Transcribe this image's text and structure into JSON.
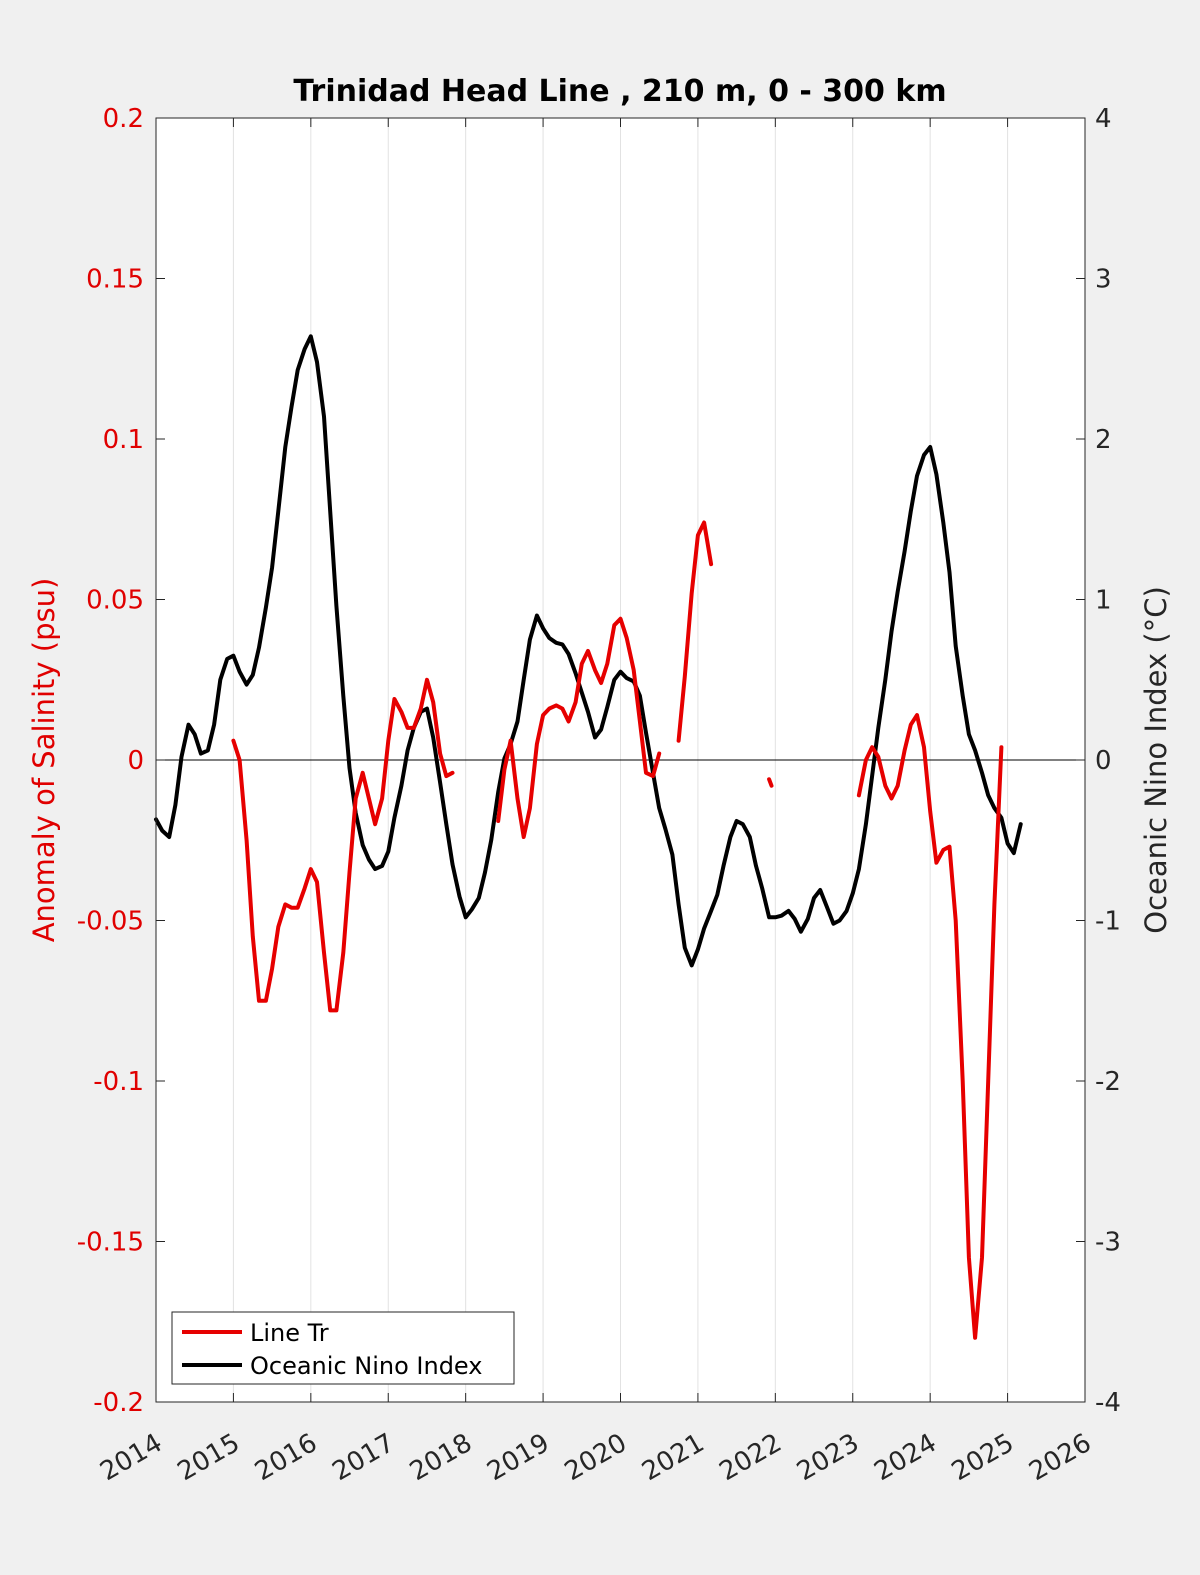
{
  "chart_data": {
    "type": "line",
    "title": "Trinidad Head Line , 210 m, 0 - 300 km",
    "xlabel": "",
    "ylabel_left": "Anomaly of Salinity (psu)",
    "ylabel_right": "Oceanic Nino Index (°C)",
    "xlim": [
      2014,
      2026
    ],
    "ylim_left": [
      -0.2,
      0.2
    ],
    "ylim_right": [
      -4,
      4
    ],
    "x_ticks": [
      "2014",
      "2015",
      "2016",
      "2017",
      "2018",
      "2019",
      "2020",
      "2021",
      "2022",
      "2023",
      "2024",
      "2025",
      "2026"
    ],
    "y_left_ticks": [
      "-0.2",
      "-0.15",
      "-0.1",
      "-0.05",
      "0",
      "0.05",
      "0.1",
      "0.15",
      "0.2"
    ],
    "y_right_ticks": [
      "-4",
      "-3",
      "-2",
      "-1",
      "0",
      "1",
      "2",
      "3",
      "4"
    ],
    "grid": "vertical",
    "legend_position": "bottom-left",
    "colors": {
      "left_axis": "#e00000",
      "salinity": "#e60000",
      "oni": "#000000",
      "background": "#f0f0f0"
    },
    "series": [
      {
        "name": "Line Tr",
        "axis": "left",
        "color": "#e60000",
        "segments": [
          [
            [
              2015.0,
              0.006
            ],
            [
              2015.08,
              0.0
            ],
            [
              2015.17,
              -0.025
            ],
            [
              2015.25,
              -0.055
            ],
            [
              2015.33,
              -0.075
            ],
            [
              2015.42,
              -0.075
            ],
            [
              2015.5,
              -0.065
            ],
            [
              2015.58,
              -0.052
            ],
            [
              2015.67,
              -0.045
            ],
            [
              2015.75,
              -0.046
            ],
            [
              2015.83,
              -0.046
            ],
            [
              2015.92,
              -0.04
            ],
            [
              2016.0,
              -0.034
            ],
            [
              2016.08,
              -0.038
            ],
            [
              2016.17,
              -0.06
            ],
            [
              2016.25,
              -0.078
            ],
            [
              2016.33,
              -0.078
            ],
            [
              2016.42,
              -0.06
            ],
            [
              2016.5,
              -0.035
            ],
            [
              2016.58,
              -0.012
            ],
            [
              2016.67,
              -0.004
            ],
            [
              2016.75,
              -0.012
            ],
            [
              2016.83,
              -0.02
            ],
            [
              2016.92,
              -0.012
            ],
            [
              2017.0,
              0.006
            ],
            [
              2017.08,
              0.019
            ],
            [
              2017.17,
              0.015
            ],
            [
              2017.25,
              0.01
            ],
            [
              2017.33,
              0.01
            ],
            [
              2017.42,
              0.016
            ],
            [
              2017.5,
              0.025
            ],
            [
              2017.58,
              0.018
            ],
            [
              2017.67,
              0.002
            ],
            [
              2017.75,
              -0.005
            ],
            [
              2017.83,
              -0.004
            ]
          ],
          [
            [
              2018.42,
              -0.019
            ],
            [
              2018.5,
              -0.003
            ],
            [
              2018.58,
              0.006
            ],
            [
              2018.67,
              -0.012
            ],
            [
              2018.75,
              -0.024
            ],
            [
              2018.83,
              -0.015
            ],
            [
              2018.92,
              0.005
            ],
            [
              2019.0,
              0.014
            ],
            [
              2019.08,
              0.016
            ],
            [
              2019.17,
              0.017
            ],
            [
              2019.25,
              0.016
            ],
            [
              2019.33,
              0.012
            ],
            [
              2019.42,
              0.018
            ],
            [
              2019.5,
              0.03
            ],
            [
              2019.58,
              0.034
            ],
            [
              2019.67,
              0.028
            ],
            [
              2019.75,
              0.024
            ],
            [
              2019.83,
              0.03
            ],
            [
              2019.92,
              0.042
            ],
            [
              2020.0,
              0.044
            ],
            [
              2020.08,
              0.038
            ],
            [
              2020.17,
              0.028
            ],
            [
              2020.25,
              0.012
            ],
            [
              2020.33,
              -0.004
            ],
            [
              2020.42,
              -0.005
            ],
            [
              2020.5,
              0.002
            ]
          ],
          [
            [
              2020.75,
              0.006
            ],
            [
              2020.83,
              0.026
            ],
            [
              2020.92,
              0.052
            ],
            [
              2021.0,
              0.07
            ],
            [
              2021.08,
              0.074
            ],
            [
              2021.17,
              0.061
            ]
          ],
          [
            [
              2021.92,
              -0.006
            ],
            [
              2021.95,
              -0.008
            ]
          ],
          [
            [
              2023.08,
              -0.011
            ],
            [
              2023.17,
              0.0
            ],
            [
              2023.25,
              0.004
            ],
            [
              2023.33,
              0.001
            ],
            [
              2023.42,
              -0.008
            ],
            [
              2023.5,
              -0.012
            ],
            [
              2023.58,
              -0.008
            ],
            [
              2023.67,
              0.003
            ],
            [
              2023.75,
              0.011
            ],
            [
              2023.83,
              0.014
            ],
            [
              2023.92,
              0.004
            ],
            [
              2024.0,
              -0.016
            ],
            [
              2024.08,
              -0.032
            ],
            [
              2024.17,
              -0.028
            ],
            [
              2024.25,
              -0.027
            ],
            [
              2024.33,
              -0.05
            ],
            [
              2024.42,
              -0.1
            ],
            [
              2024.5,
              -0.155
            ],
            [
              2024.58,
              -0.18
            ],
            [
              2024.67,
              -0.155
            ],
            [
              2024.75,
              -0.1
            ],
            [
              2024.83,
              -0.045
            ],
            [
              2024.92,
              0.004
            ]
          ]
        ]
      },
      {
        "name": "Oceanic Nino Index",
        "axis": "right",
        "color": "#000000",
        "segments": [
          [
            [
              2014.0,
              -0.37
            ],
            [
              2014.08,
              -0.44
            ],
            [
              2014.17,
              -0.48
            ],
            [
              2014.25,
              -0.28
            ],
            [
              2014.33,
              0.02
            ],
            [
              2014.42,
              0.22
            ],
            [
              2014.5,
              0.16
            ],
            [
              2014.58,
              0.04
            ],
            [
              2014.67,
              0.06
            ],
            [
              2014.75,
              0.22
            ],
            [
              2014.83,
              0.5
            ],
            [
              2014.92,
              0.63
            ],
            [
              2015.0,
              0.65
            ],
            [
              2015.08,
              0.55
            ],
            [
              2015.17,
              0.47
            ],
            [
              2015.25,
              0.53
            ],
            [
              2015.33,
              0.7
            ],
            [
              2015.42,
              0.95
            ],
            [
              2015.5,
              1.2
            ],
            [
              2015.58,
              1.55
            ],
            [
              2015.67,
              1.95
            ],
            [
              2015.75,
              2.2
            ],
            [
              2015.83,
              2.43
            ],
            [
              2015.92,
              2.56
            ],
            [
              2016.0,
              2.64
            ],
            [
              2016.08,
              2.48
            ],
            [
              2016.17,
              2.14
            ],
            [
              2016.25,
              1.55
            ],
            [
              2016.33,
              0.96
            ],
            [
              2016.42,
              0.4
            ],
            [
              2016.5,
              -0.05
            ],
            [
              2016.58,
              -0.33
            ],
            [
              2016.67,
              -0.53
            ],
            [
              2016.75,
              -0.62
            ],
            [
              2016.83,
              -0.68
            ],
            [
              2016.92,
              -0.66
            ],
            [
              2017.0,
              -0.57
            ],
            [
              2017.08,
              -0.36
            ],
            [
              2017.17,
              -0.16
            ],
            [
              2017.25,
              0.06
            ],
            [
              2017.33,
              0.2
            ],
            [
              2017.42,
              0.3
            ],
            [
              2017.5,
              0.32
            ],
            [
              2017.58,
              0.14
            ],
            [
              2017.67,
              -0.14
            ],
            [
              2017.75,
              -0.4
            ],
            [
              2017.83,
              -0.65
            ],
            [
              2017.92,
              -0.85
            ],
            [
              2018.0,
              -0.98
            ],
            [
              2018.08,
              -0.93
            ],
            [
              2018.17,
              -0.86
            ],
            [
              2018.25,
              -0.7
            ],
            [
              2018.33,
              -0.5
            ],
            [
              2018.42,
              -0.2
            ],
            [
              2018.5,
              0.01
            ],
            [
              2018.58,
              0.1
            ],
            [
              2018.67,
              0.24
            ],
            [
              2018.75,
              0.5
            ],
            [
              2018.83,
              0.75
            ],
            [
              2018.92,
              0.9
            ],
            [
              2019.0,
              0.82
            ],
            [
              2019.08,
              0.76
            ],
            [
              2019.17,
              0.73
            ],
            [
              2019.25,
              0.72
            ],
            [
              2019.33,
              0.66
            ],
            [
              2019.42,
              0.54
            ],
            [
              2019.5,
              0.42
            ],
            [
              2019.58,
              0.3
            ],
            [
              2019.67,
              0.14
            ],
            [
              2019.75,
              0.19
            ],
            [
              2019.83,
              0.33
            ],
            [
              2019.92,
              0.5
            ],
            [
              2020.0,
              0.55
            ],
            [
              2020.08,
              0.51
            ],
            [
              2020.17,
              0.49
            ],
            [
              2020.25,
              0.4
            ],
            [
              2020.33,
              0.17
            ],
            [
              2020.42,
              -0.08
            ],
            [
              2020.5,
              -0.3
            ],
            [
              2020.58,
              -0.43
            ],
            [
              2020.67,
              -0.59
            ],
            [
              2020.75,
              -0.9
            ],
            [
              2020.83,
              -1.17
            ],
            [
              2020.92,
              -1.28
            ],
            [
              2021.0,
              -1.18
            ],
            [
              2021.08,
              -1.05
            ],
            [
              2021.17,
              -0.94
            ],
            [
              2021.25,
              -0.84
            ],
            [
              2021.33,
              -0.66
            ],
            [
              2021.42,
              -0.48
            ],
            [
              2021.5,
              -0.38
            ],
            [
              2021.58,
              -0.4
            ],
            [
              2021.67,
              -0.48
            ],
            [
              2021.75,
              -0.66
            ],
            [
              2021.83,
              -0.8
            ],
            [
              2021.92,
              -0.98
            ],
            [
              2022.0,
              -0.98
            ],
            [
              2022.08,
              -0.97
            ],
            [
              2022.17,
              -0.94
            ],
            [
              2022.25,
              -0.99
            ],
            [
              2022.33,
              -1.07
            ],
            [
              2022.42,
              -0.99
            ],
            [
              2022.5,
              -0.86
            ],
            [
              2022.58,
              -0.81
            ],
            [
              2022.67,
              -0.92
            ],
            [
              2022.75,
              -1.02
            ],
            [
              2022.83,
              -1.0
            ],
            [
              2022.92,
              -0.94
            ],
            [
              2023.0,
              -0.83
            ],
            [
              2023.08,
              -0.68
            ],
            [
              2023.17,
              -0.4
            ],
            [
              2023.25,
              -0.1
            ],
            [
              2023.33,
              0.2
            ],
            [
              2023.42,
              0.5
            ],
            [
              2023.5,
              0.8
            ],
            [
              2023.58,
              1.05
            ],
            [
              2023.67,
              1.3
            ],
            [
              2023.75,
              1.55
            ],
            [
              2023.83,
              1.77
            ],
            [
              2023.92,
              1.9
            ],
            [
              2024.0,
              1.95
            ],
            [
              2024.08,
              1.78
            ],
            [
              2024.17,
              1.48
            ],
            [
              2024.25,
              1.17
            ],
            [
              2024.33,
              0.71
            ],
            [
              2024.42,
              0.4
            ],
            [
              2024.5,
              0.16
            ],
            [
              2024.58,
              0.06
            ],
            [
              2024.67,
              -0.08
            ],
            [
              2024.75,
              -0.22
            ],
            [
              2024.83,
              -0.3
            ],
            [
              2024.92,
              -0.36
            ],
            [
              2025.0,
              -0.52
            ],
            [
              2025.08,
              -0.58
            ],
            [
              2025.17,
              -0.4
            ]
          ]
        ]
      }
    ]
  }
}
